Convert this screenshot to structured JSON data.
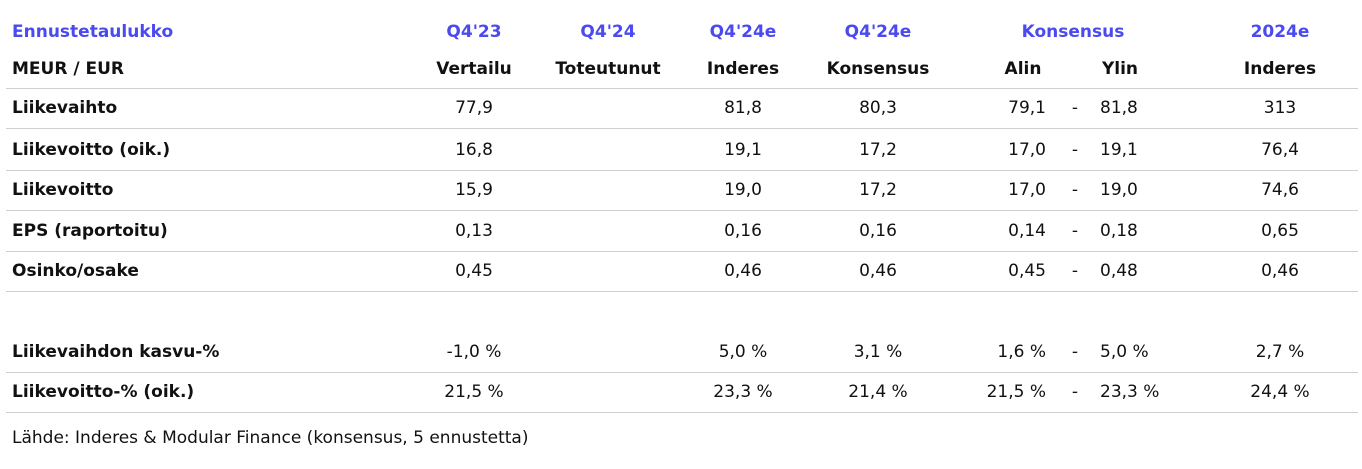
{
  "table": {
    "header_top": {
      "title": "Ennustetaulukko",
      "vertailu": "Q4'23",
      "toteutunut": "Q4'24",
      "inderes": "Q4'24e",
      "konsensus": "Q4'24e",
      "range": "Konsensus",
      "inderes_2024": "2024e"
    },
    "header_sub": {
      "title": "MEUR / EUR",
      "vertailu": "Vertailu",
      "toteutunut": "Toteutunut",
      "inderes": "Inderes",
      "konsensus": "Konsensus",
      "alin": "Alin",
      "ylin": "Ylin",
      "inderes_2024": "Inderes"
    },
    "rows": [
      {
        "label": "Liikevaihto",
        "vertailu": "77,9",
        "inderes": "81,8",
        "konsensus": "80,3",
        "alin": "79,1",
        "sep": "-",
        "ylin": "81,8",
        "inderes_2024": "313"
      },
      {
        "label": "Liikevoitto (oik.)",
        "vertailu": "16,8",
        "inderes": "19,1",
        "konsensus": "17,2",
        "alin": "17,0",
        "sep": "-",
        "ylin": "19,1",
        "inderes_2024": "76,4"
      },
      {
        "label": "Liikevoitto",
        "vertailu": "15,9",
        "inderes": "19,0",
        "konsensus": "17,2",
        "alin": "17,0",
        "sep": "-",
        "ylin": "19,0",
        "inderes_2024": "74,6"
      },
      {
        "label": "EPS (raportoitu)",
        "vertailu": "0,13",
        "inderes": "0,16",
        "konsensus": "0,16",
        "alin": "0,14",
        "sep": "-",
        "ylin": "0,18",
        "inderes_2024": "0,65"
      },
      {
        "label": "Osinko/osake",
        "vertailu": "0,45",
        "inderes": "0,46",
        "konsensus": "0,46",
        "alin": "0,45",
        "sep": "-",
        "ylin": "0,48",
        "inderes_2024": "0,46"
      },
      {
        "label": "Liikevaihdon kasvu-%",
        "vertailu": "-1,0 %",
        "inderes": "5,0 %",
        "konsensus": "3,1 %",
        "alin": "1,6 %",
        "sep": "-",
        "ylin": "5,0 %",
        "inderes_2024": "2,7 %"
      },
      {
        "label": "Liikevoitto-% (oik.)",
        "vertailu": "21,5 %",
        "inderes": "23,3 %",
        "konsensus": "21,4 %",
        "alin": "21,5 %",
        "sep": "-",
        "ylin": "23,3 %",
        "inderes_2024": "24,4 %"
      }
    ],
    "footnote": "Lähde: Inderes & Modular Finance  (konsensus, 5 ennustetta)"
  }
}
